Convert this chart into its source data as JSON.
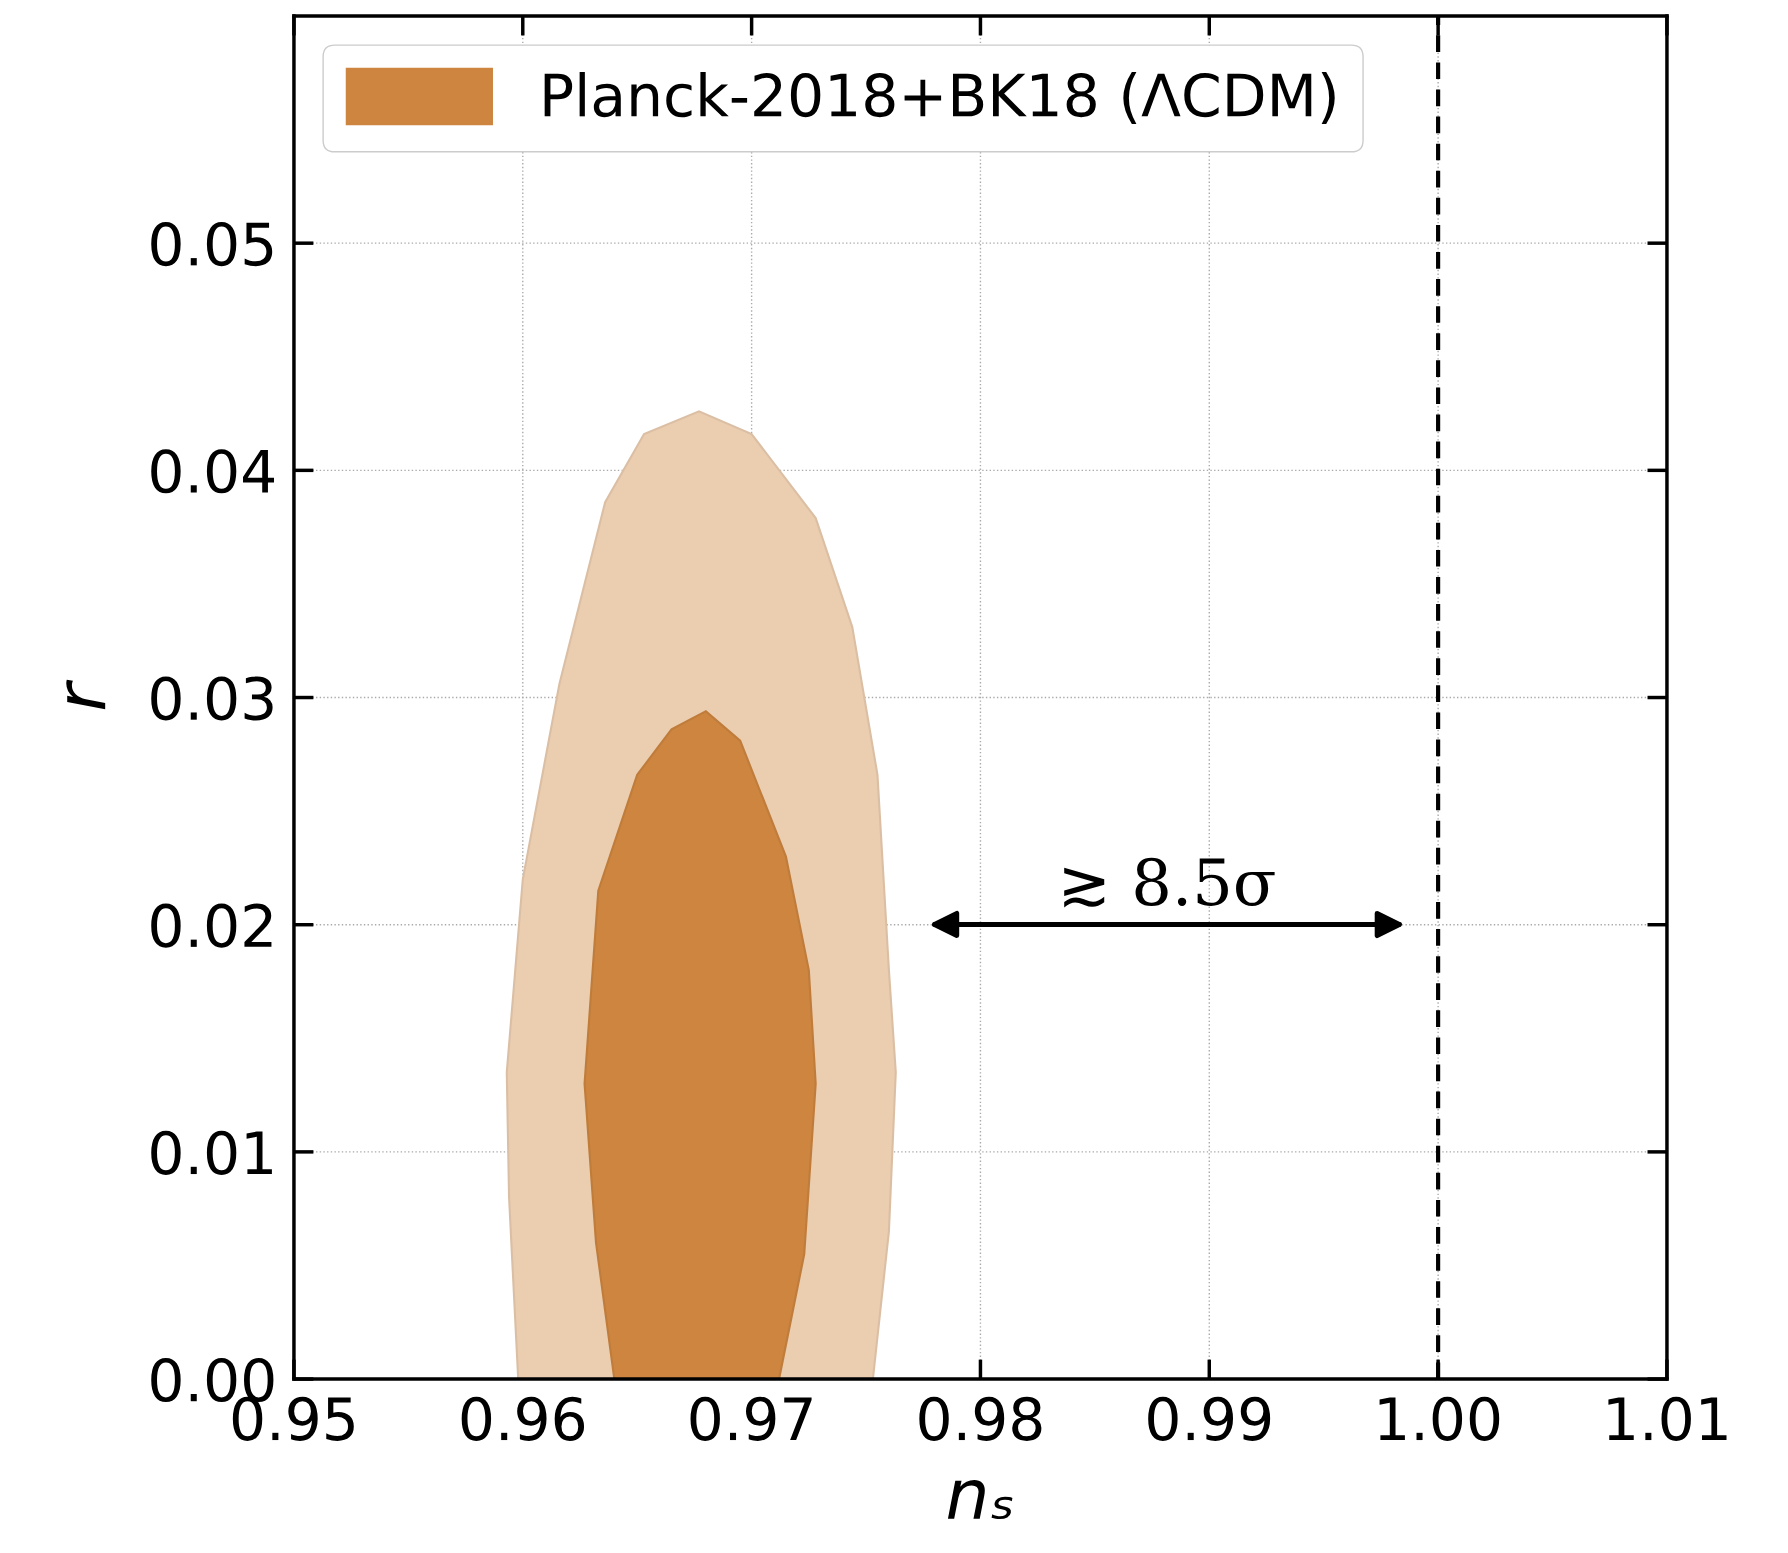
{
  "chart_data": {
    "type": "area",
    "xlabel": "nₛ",
    "ylabel": "r",
    "series": [
      {
        "color": "#ebcdb0",
        "x": [
          0.9598,
          0.9594,
          0.9593,
          0.96,
          0.9616,
          0.9636,
          0.9653,
          0.9677,
          0.97,
          0.9728,
          0.9744,
          0.9755,
          0.976,
          0.9763,
          0.976,
          0.9753
        ],
        "values": [
          0,
          0.008,
          0.0135,
          0.022,
          0.0306,
          0.0386,
          0.0416,
          0.0426,
          0.0416,
          0.0379,
          0.0331,
          0.0266,
          0.018,
          0.0135,
          0.0065,
          0
        ]
      },
      {
        "name": "Planck-2018+BK18 (ΛCDM)",
        "color": "#cd853f",
        "x": [
          0.964,
          0.9632,
          0.9627,
          0.9633,
          0.965,
          0.9665,
          0.968,
          0.9695,
          0.9715,
          0.9725,
          0.9728,
          0.9723,
          0.9712
        ],
        "values": [
          0,
          0.006,
          0.013,
          0.0215,
          0.0266,
          0.0286,
          0.0294,
          0.0281,
          0.023,
          0.018,
          0.013,
          0.0055,
          0
        ]
      }
    ],
    "xlim": [
      0.95,
      1.01
    ],
    "xticks": [
      0.95,
      0.96,
      0.97,
      0.98,
      0.99,
      {
        "value": 1.0,
        "label": "1.00"
      },
      1.01
    ],
    "ylim": [
      0,
      0.06
    ],
    "yticks": [
      {
        "value": 0,
        "label": "0.00"
      },
      0.01,
      0.02,
      0.03,
      0.04,
      0.05
    ],
    "ref_lines": [
      {
        "axis": "x",
        "value": 1.0,
        "color": "#000000",
        "line_style": "dashed"
      }
    ],
    "annotations": [
      "≳ 8.5σ"
    ],
    "grid": true,
    "legend": "top left"
  }
}
